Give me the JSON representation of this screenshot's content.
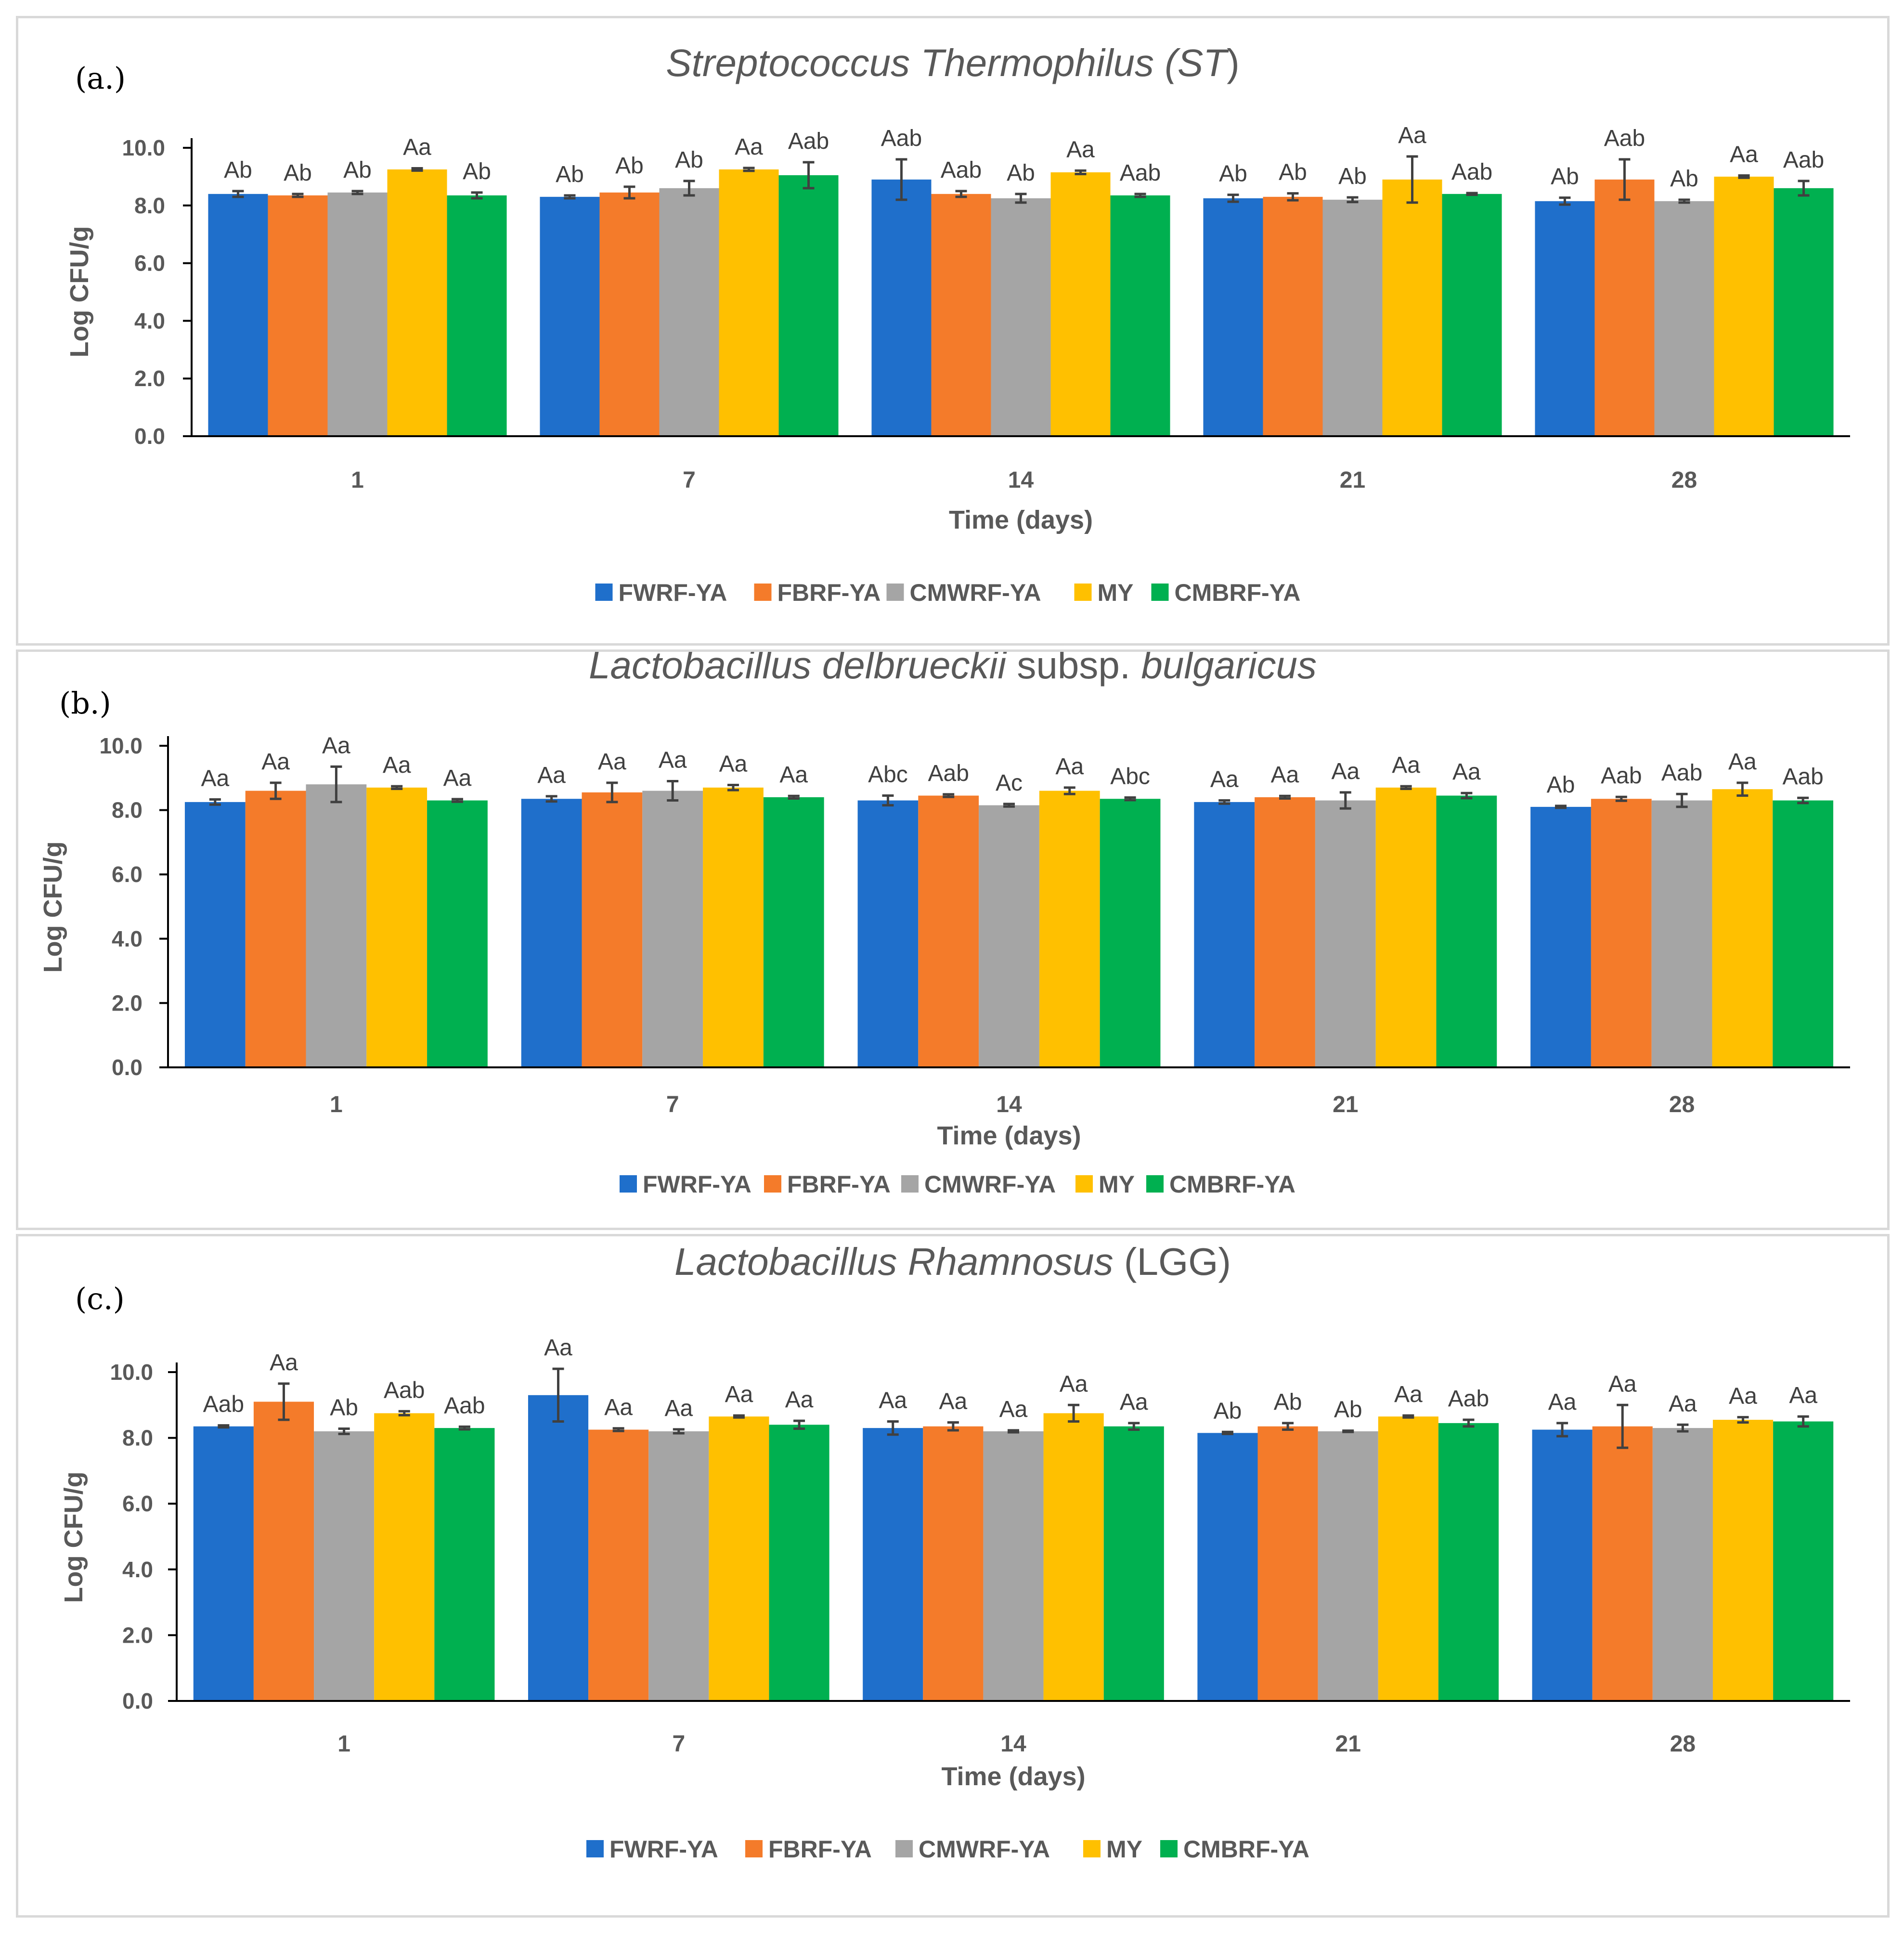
{
  "chart_data": [
    {
      "type": "bar",
      "panel_label": "(a.)",
      "title_italic": "Streptococcus Thermophilus (ST",
      "title_plain": ")",
      "xlabel": "Time (days)",
      "ylabel": "Log CFU/g",
      "ylim": [
        0,
        10
      ],
      "yticks": [
        "0.0",
        "2.0",
        "4.0",
        "6.0",
        "8.0",
        "10.0"
      ],
      "categories": [
        "1",
        "7",
        "14",
        "21",
        "28"
      ],
      "series": [
        {
          "name": "FWRF-YA",
          "color": "#1f6fcb",
          "values": [
            8.4,
            8.3,
            8.9,
            8.25,
            8.15
          ],
          "errors": [
            0.1,
            0.05,
            0.7,
            0.12,
            0.12
          ],
          "labels": [
            "Ab",
            "Ab",
            "Aab",
            "Ab",
            "Ab"
          ]
        },
        {
          "name": "FBRF-YA",
          "color": "#f47b2a",
          "values": [
            8.35,
            8.45,
            8.4,
            8.3,
            8.9
          ],
          "errors": [
            0.05,
            0.2,
            0.1,
            0.12,
            0.7
          ],
          "labels": [
            "Ab",
            "Ab",
            "Aab",
            "Ab",
            "Aab"
          ]
        },
        {
          "name": "CMWRF-YA",
          "color": "#a5a5a5",
          "values": [
            8.45,
            8.6,
            8.25,
            8.2,
            8.15
          ],
          "errors": [
            0.05,
            0.25,
            0.15,
            0.08,
            0.05
          ],
          "labels": [
            "Ab",
            "Ab",
            "Ab",
            "Ab",
            "Ab"
          ]
        },
        {
          "name": "MY",
          "color": "#ffc000",
          "values": [
            9.25,
            9.25,
            9.15,
            8.9,
            9.0
          ],
          "errors": [
            0.04,
            0.05,
            0.06,
            0.8,
            0.04
          ],
          "labels": [
            "Aa",
            "Aa",
            "Aa",
            "Aa",
            "Aa"
          ]
        },
        {
          "name": "CMBRF-YA",
          "color": "#00b050",
          "values": [
            8.35,
            9.05,
            8.35,
            8.4,
            8.6
          ],
          "errors": [
            0.1,
            0.45,
            0.05,
            0.03,
            0.25
          ],
          "labels": [
            "Ab",
            "Aab",
            "Aab",
            "Aab",
            "Aab"
          ]
        }
      ]
    },
    {
      "type": "bar",
      "panel_label": "(b.)",
      "title_italic": "Lactobacillus delbrueckii",
      "title_plain": " subsp. ",
      "title_italic2": "bulgaricus",
      "xlabel": "Time (days)",
      "ylabel": "Log CFU/g",
      "ylim": [
        0,
        10
      ],
      "yticks": [
        "0.0",
        "2.0",
        "4.0",
        "6.0",
        "8.0",
        "10.0"
      ],
      "categories": [
        "1",
        "7",
        "14",
        "21",
        "28"
      ],
      "series": [
        {
          "name": "FWRF-YA",
          "color": "#1f6fcb",
          "values": [
            8.25,
            8.35,
            8.3,
            8.25,
            8.1
          ],
          "errors": [
            0.08,
            0.08,
            0.15,
            0.05,
            0.03
          ],
          "labels": [
            "Aa",
            "Aa",
            "Abc",
            "Aa",
            "Ab"
          ]
        },
        {
          "name": "FBRF-YA",
          "color": "#f47b2a",
          "values": [
            8.6,
            8.55,
            8.45,
            8.4,
            8.35
          ],
          "errors": [
            0.25,
            0.3,
            0.04,
            0.04,
            0.06
          ],
          "labels": [
            "Aa",
            "Aa",
            "Aab",
            "Aa",
            "Aab"
          ]
        },
        {
          "name": "CMWRF-YA",
          "color": "#a5a5a5",
          "values": [
            8.8,
            8.6,
            8.15,
            8.3,
            8.3
          ],
          "errors": [
            0.55,
            0.3,
            0.04,
            0.25,
            0.2
          ],
          "labels": [
            "Aa",
            "Aa",
            "Ac",
            "Aa",
            "Aab"
          ]
        },
        {
          "name": "MY",
          "color": "#ffc000",
          "values": [
            8.7,
            8.7,
            8.6,
            8.7,
            8.65
          ],
          "errors": [
            0.04,
            0.08,
            0.1,
            0.04,
            0.2
          ],
          "labels": [
            "Aa",
            "Aa",
            "Aa",
            "Aa",
            "Aa"
          ]
        },
        {
          "name": "CMBRF-YA",
          "color": "#00b050",
          "values": [
            8.3,
            8.4,
            8.35,
            8.45,
            8.3
          ],
          "errors": [
            0.04,
            0.04,
            0.04,
            0.08,
            0.08
          ],
          "labels": [
            "Aa",
            "Aa",
            "Abc",
            "Aa",
            "Aab"
          ]
        }
      ]
    },
    {
      "type": "bar",
      "panel_label": "(c.)",
      "title_italic": "Lactobacillus Rhamnosus",
      "title_plain": " (LGG)",
      "xlabel": "Time (days)",
      "ylabel": "Log CFU/g",
      "ylim": [
        0,
        10
      ],
      "yticks": [
        "0.0",
        "2.0",
        "4.0",
        "6.0",
        "8.0",
        "10.0"
      ],
      "categories": [
        "1",
        "7",
        "14",
        "21",
        "28"
      ],
      "series": [
        {
          "name": "FWRF-YA",
          "color": "#1f6fcb",
          "values": [
            8.35,
            9.3,
            8.3,
            8.15,
            8.25
          ],
          "errors": [
            0.03,
            0.8,
            0.2,
            0.03,
            0.2
          ],
          "labels": [
            "Aab",
            "Aa",
            "Aa",
            "Ab",
            "Aa"
          ]
        },
        {
          "name": "FBRF-YA",
          "color": "#f47b2a",
          "values": [
            9.1,
            8.25,
            8.35,
            8.35,
            8.35
          ],
          "errors": [
            0.55,
            0.04,
            0.12,
            0.1,
            0.65
          ],
          "labels": [
            "Aa",
            "Aa",
            "Aa",
            "Ab",
            "Aa"
          ]
        },
        {
          "name": "CMWRF-YA",
          "color": "#a5a5a5",
          "values": [
            8.2,
            8.2,
            8.2,
            8.2,
            8.3
          ],
          "errors": [
            0.08,
            0.06,
            0.03,
            0.02,
            0.1
          ],
          "labels": [
            "Ab",
            "Aa",
            "Aa",
            "Ab",
            "Aa"
          ]
        },
        {
          "name": "MY",
          "color": "#ffc000",
          "values": [
            8.75,
            8.65,
            8.75,
            8.65,
            8.55
          ],
          "errors": [
            0.06,
            0.03,
            0.25,
            0.03,
            0.08
          ],
          "labels": [
            "Aab",
            "Aa",
            "Aa",
            "Aa",
            "Aa"
          ]
        },
        {
          "name": "CMBRF-YA",
          "color": "#00b050",
          "values": [
            8.3,
            8.4,
            8.35,
            8.45,
            8.5
          ],
          "errors": [
            0.04,
            0.12,
            0.1,
            0.1,
            0.15
          ],
          "labels": [
            "Aab",
            "Aa",
            "Aa",
            "Aab",
            "Aa"
          ]
        }
      ]
    }
  ]
}
